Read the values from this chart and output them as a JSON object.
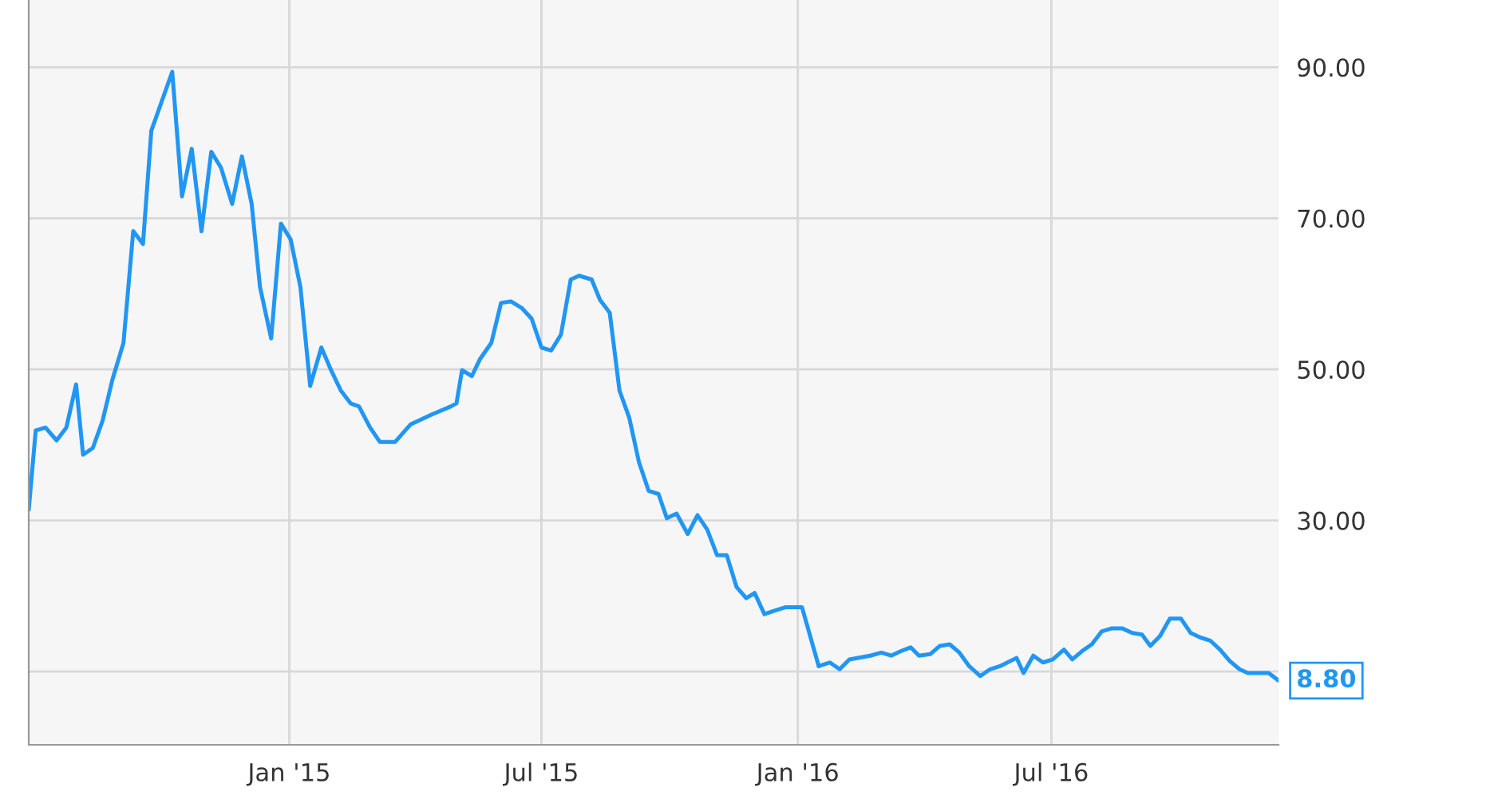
{
  "chart_data": {
    "type": "line",
    "x": [
      "2014-06-28",
      "2014-07-03",
      "2014-07-10",
      "2014-07-18",
      "2014-07-25",
      "2014-08-01",
      "2014-08-06",
      "2014-08-13",
      "2014-08-20",
      "2014-08-27",
      "2014-09-04",
      "2014-09-11",
      "2014-09-18",
      "2014-09-24",
      "2014-10-09",
      "2014-10-16",
      "2014-10-23",
      "2014-10-30",
      "2014-11-06",
      "2014-11-13",
      "2014-11-21",
      "2014-11-28",
      "2014-12-05",
      "2014-12-11",
      "2014-12-19",
      "2014-12-26",
      "2015-01-02",
      "2015-01-09",
      "2015-01-16",
      "2015-01-24",
      "2015-01-31",
      "2015-02-07",
      "2015-02-14",
      "2015-02-20",
      "2015-02-28",
      "2015-03-07",
      "2015-03-18",
      "2015-03-29",
      "2015-04-13",
      "2015-04-27",
      "2015-05-01",
      "2015-05-05",
      "2015-05-12",
      "2015-05-18",
      "2015-05-26",
      "2015-06-02",
      "2015-06-09",
      "2015-06-17",
      "2015-06-24",
      "2015-07-01",
      "2015-07-08",
      "2015-07-15",
      "2015-07-22",
      "2015-07-28",
      "2015-08-06",
      "2015-08-12",
      "2015-08-19",
      "2015-08-26",
      "2015-09-02",
      "2015-09-09",
      "2015-09-16",
      "2015-09-23",
      "2015-09-29",
      "2015-10-06",
      "2015-10-14",
      "2015-10-21",
      "2015-10-28",
      "2015-11-04",
      "2015-11-11",
      "2015-11-18",
      "2015-11-25",
      "2015-12-01",
      "2015-12-08",
      "2015-12-16",
      "2015-12-23",
      "2016-01-04",
      "2016-01-16",
      "2016-01-24",
      "2016-01-31",
      "2016-02-07",
      "2016-02-22",
      "2016-03-01",
      "2016-03-08",
      "2016-03-15",
      "2016-03-22",
      "2016-03-28",
      "2016-04-05",
      "2016-04-12",
      "2016-04-19",
      "2016-04-26",
      "2016-05-03",
      "2016-05-11",
      "2016-05-18",
      "2016-05-25",
      "2016-06-06",
      "2016-06-11",
      "2016-06-18",
      "2016-06-25",
      "2016-07-02",
      "2016-07-10",
      "2016-07-16",
      "2016-07-23",
      "2016-07-30",
      "2016-08-06",
      "2016-08-13",
      "2016-08-21",
      "2016-08-28",
      "2016-09-04",
      "2016-09-10",
      "2016-09-17",
      "2016-09-24",
      "2016-10-02",
      "2016-10-09",
      "2016-10-16",
      "2016-10-23",
      "2016-10-30",
      "2016-11-06",
      "2016-11-13",
      "2016-11-19",
      "2016-12-04",
      "2016-12-11"
    ],
    "series": [
      {
        "color": "#2196f3",
        "values": [
          31.4,
          41.9,
          42.3,
          40.6,
          42.3,
          48.0,
          38.7,
          39.6,
          43.2,
          48.6,
          53.5,
          68.3,
          66.6,
          81.6,
          89.4,
          72.9,
          79.2,
          68.3,
          78.8,
          76.7,
          71.9,
          78.2,
          71.9,
          60.9,
          54.1,
          69.3,
          67.2,
          60.9,
          47.8,
          52.9,
          49.9,
          47.2,
          45.5,
          45.1,
          42.3,
          40.4,
          40.4,
          42.7,
          44.0,
          45.1,
          45.5,
          49.9,
          49.1,
          51.4,
          53.5,
          58.8,
          59.0,
          58.1,
          56.7,
          52.9,
          52.5,
          54.6,
          61.9,
          62.4,
          61.9,
          59.2,
          57.5,
          47.2,
          43.6,
          37.7,
          33.9,
          33.5,
          30.3,
          30.9,
          28.2,
          30.7,
          28.8,
          25.4,
          25.4,
          21.2,
          19.7,
          20.4,
          17.6,
          18.1,
          18.5,
          18.5,
          10.7,
          11.2,
          10.3,
          11.6,
          12.1,
          12.5,
          12.1,
          12.7,
          13.2,
          12.1,
          12.3,
          13.4,
          13.6,
          12.5,
          10.7,
          9.4,
          10.3,
          10.7,
          11.8,
          9.8,
          12.1,
          11.2,
          11.6,
          12.9,
          11.6,
          12.7,
          13.6,
          15.3,
          15.7,
          15.7,
          15.1,
          14.9,
          13.4,
          14.7,
          17.0,
          17.0,
          15.1,
          14.5,
          14.1,
          12.9,
          11.4,
          10.3,
          9.8,
          9.8,
          8.8
        ]
      }
    ],
    "xlim": [
      "2014-06-28",
      "2016-12-11"
    ],
    "xticks": [
      {
        "value": "2015-01-01",
        "label": "Jan '15"
      },
      {
        "value": "2015-07-01",
        "label": "Jul '15"
      },
      {
        "value": "2016-01-01",
        "label": "Jan '16"
      },
      {
        "value": "2016-07-01",
        "label": "Jul '16"
      }
    ],
    "ylim": [
      0.3,
      98.9
    ],
    "yticks": [
      {
        "value": 10,
        "label": null
      },
      {
        "value": 30,
        "label": "30.00"
      },
      {
        "value": 50,
        "label": "50.00"
      },
      {
        "value": 70,
        "label": "70.00"
      },
      {
        "value": 90,
        "label": "90.00"
      }
    ],
    "grid": true,
    "annotations": [
      {
        "text": "8.80",
        "x": "2016-12-11",
        "y": 8.8
      }
    ]
  }
}
